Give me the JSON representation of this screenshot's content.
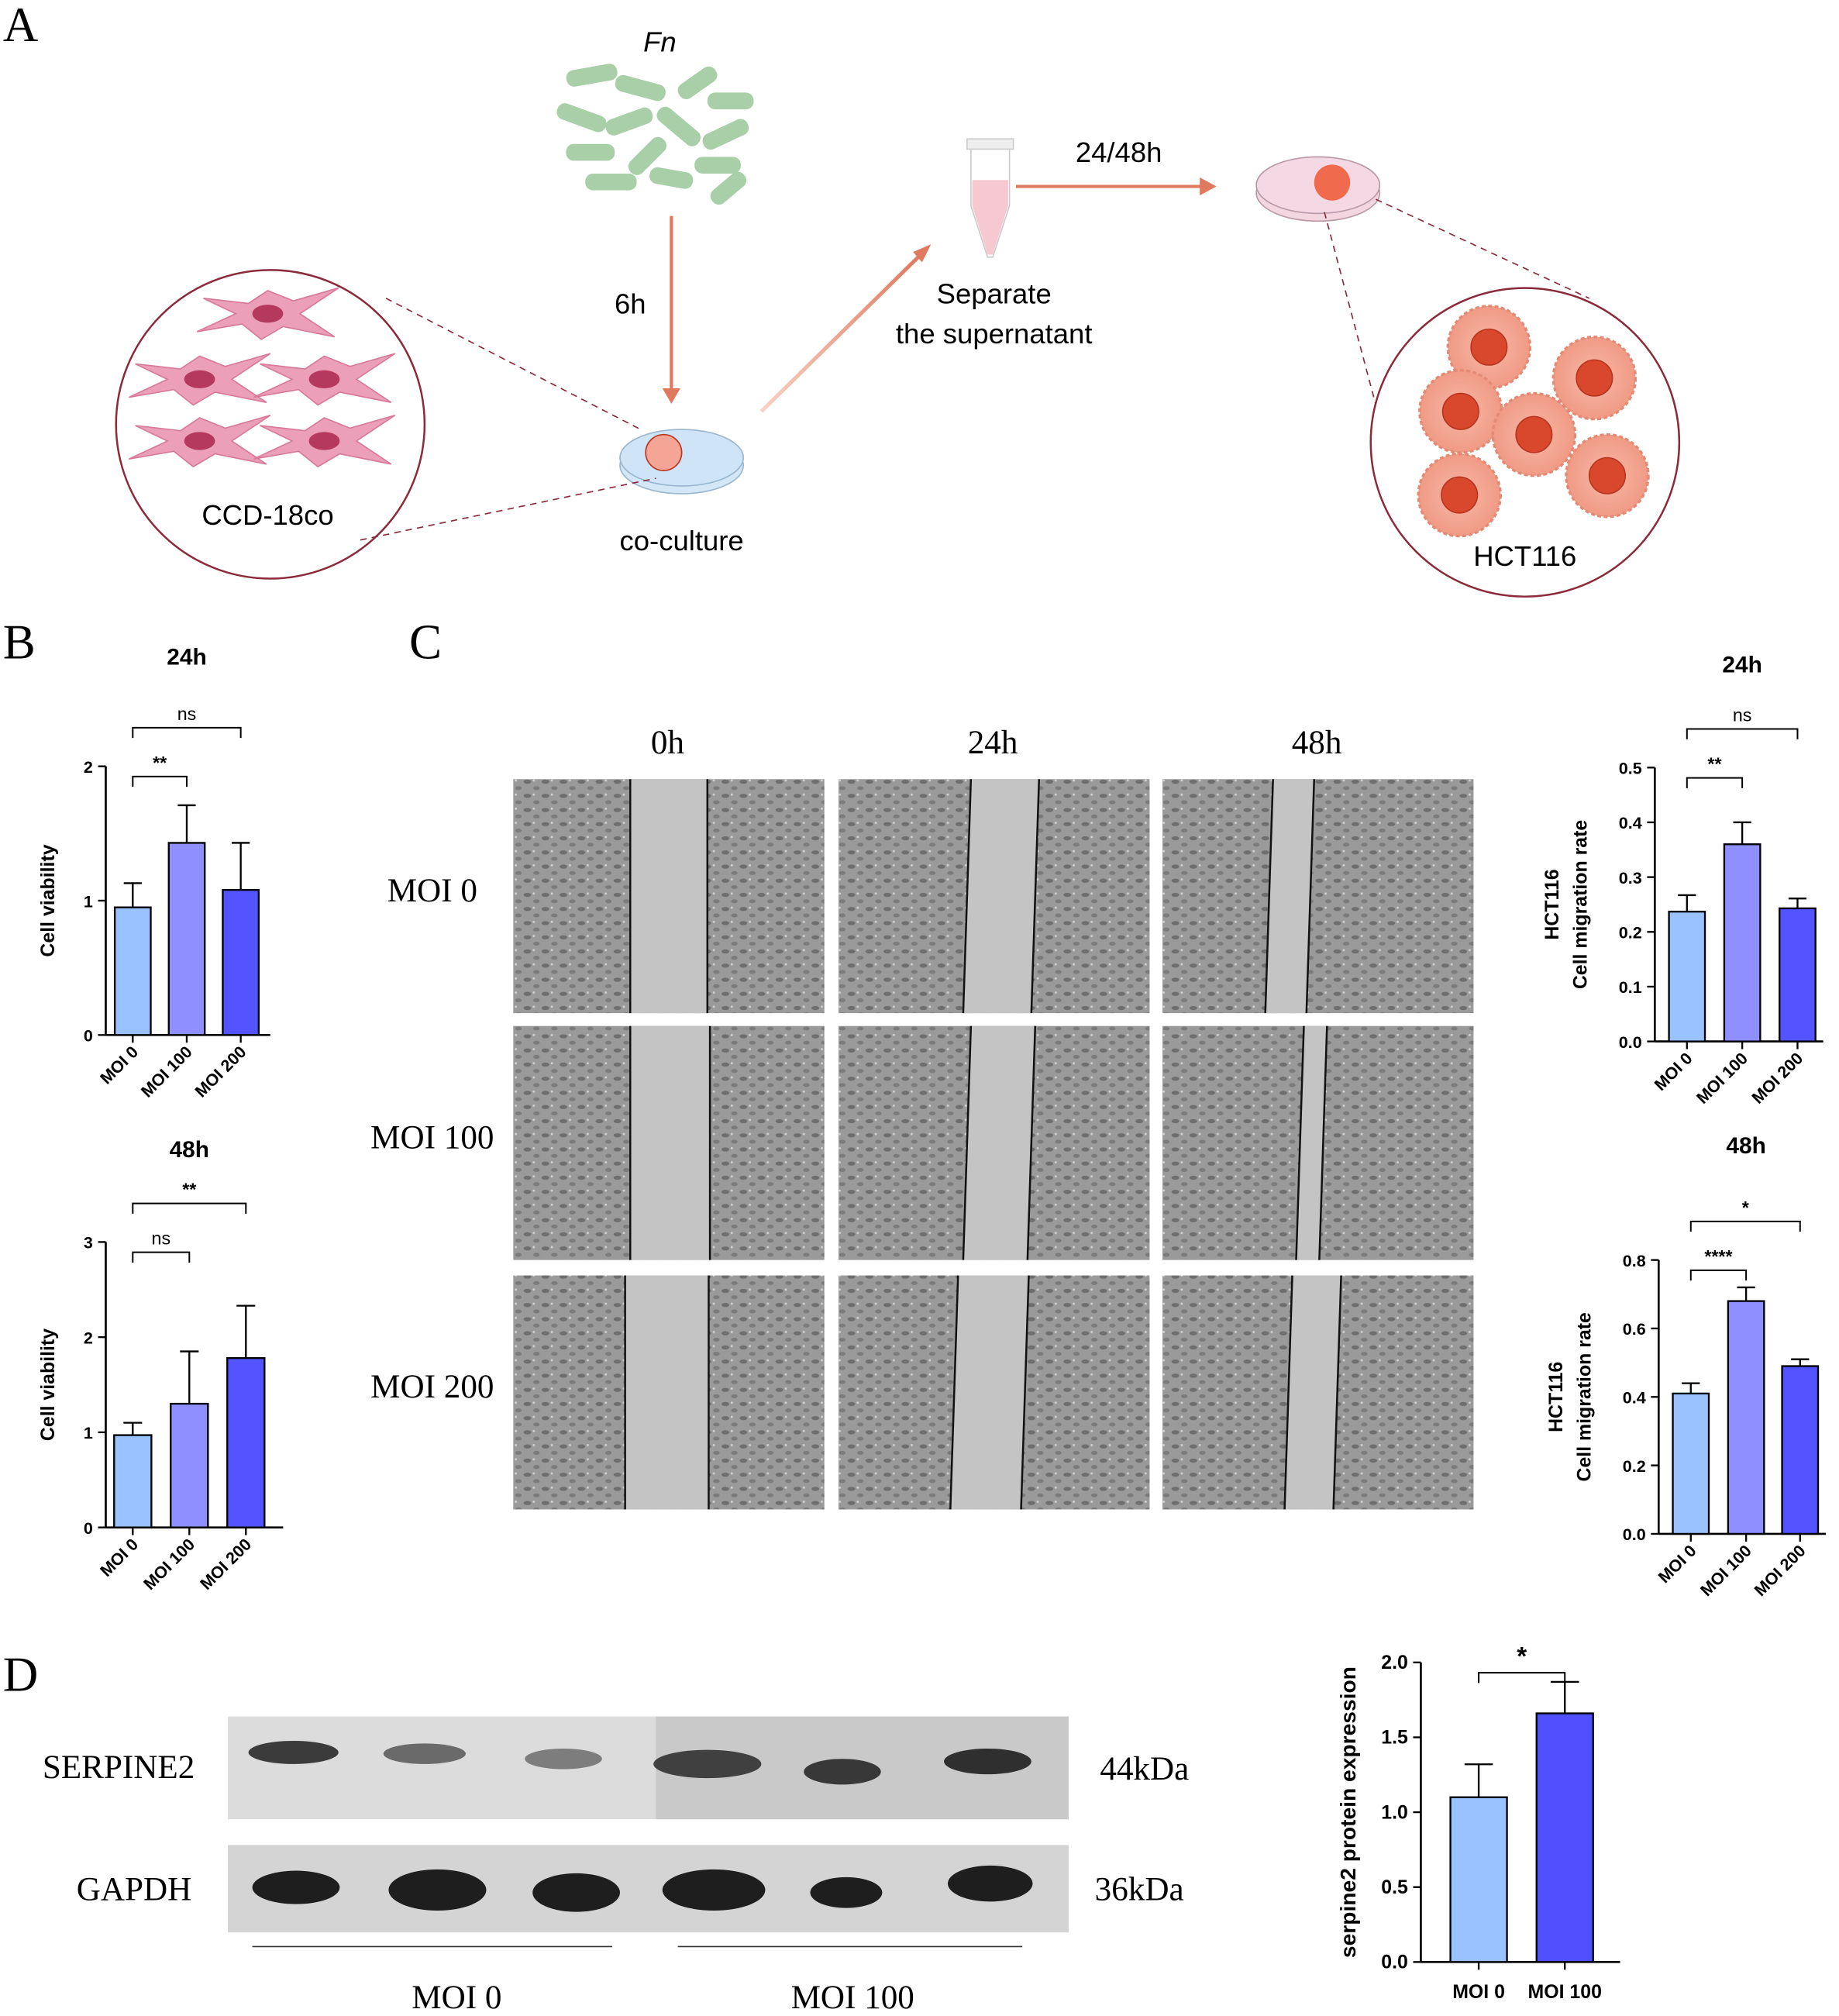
{
  "panels": [
    "A",
    "B",
    "C",
    "D"
  ],
  "diagram": {
    "bacteria": "Fn",
    "time1": "6h",
    "separate": [
      "Separate",
      "the supernatant"
    ],
    "time2": "24/48h",
    "coculture": "co-culture",
    "fibroblast": "CCD-18co",
    "cancer": "HCT116"
  },
  "scratch": {
    "columns": [
      "0h",
      "24h",
      "48h"
    ],
    "rows": [
      "MOI  0",
      "MOI 100",
      "MOI 200"
    ]
  },
  "blot": {
    "proteins": [
      "SERPINE2",
      "GAPDH"
    ],
    "sizes": [
      "44kDa",
      "36kDa"
    ],
    "groups": [
      "MOI 0",
      "MOI 100"
    ]
  },
  "chart_data": [
    {
      "type": "bar",
      "title": "24h",
      "ylabel": "Cell viability",
      "categories": [
        "MOI 0",
        "MOI 100",
        "MOI 200"
      ],
      "values": [
        0.95,
        1.43,
        1.08
      ],
      "errors": [
        0.18,
        0.28,
        0.35
      ],
      "colors": [
        "#99c2ff",
        "#8f8fff",
        "#5353ff"
      ],
      "ylim": [
        0,
        2
      ],
      "yticks": [
        0,
        1,
        2
      ],
      "significance": [
        {
          "groups": [
            "MOI 0",
            "MOI 100"
          ],
          "label": "**"
        },
        {
          "groups": [
            "MOI 0",
            "MOI 200"
          ],
          "label": "ns"
        }
      ]
    },
    {
      "type": "bar",
      "title": "48h",
      "ylabel": "Cell viability",
      "categories": [
        "MOI 0",
        "MOI 100",
        "MOI 200"
      ],
      "values": [
        0.97,
        1.3,
        1.78
      ],
      "errors": [
        0.13,
        0.55,
        0.55
      ],
      "colors": [
        "#99c2ff",
        "#8f8fff",
        "#5353ff"
      ],
      "ylim": [
        0,
        3
      ],
      "yticks": [
        0,
        1,
        2,
        3
      ],
      "significance": [
        {
          "groups": [
            "MOI 0",
            "MOI 100"
          ],
          "label": "ns"
        },
        {
          "groups": [
            "MOI 0",
            "MOI 200"
          ],
          "label": "**"
        }
      ]
    },
    {
      "type": "bar",
      "title": "24h",
      "ylabel": [
        "HCT116",
        "Cell migration rate"
      ],
      "categories": [
        "MOI 0",
        "MOI 100",
        "MOI 200"
      ],
      "values": [
        0.237,
        0.36,
        0.243
      ],
      "errors": [
        0.03,
        0.04,
        0.018
      ],
      "colors": [
        "#99c2ff",
        "#8f8fff",
        "#5353ff"
      ],
      "ylim": [
        0,
        0.5
      ],
      "yticks": [
        {
          "value": 0,
          "label": "0.0"
        },
        0.1,
        0.2,
        0.3,
        0.4,
        0.5
      ],
      "significance": [
        {
          "groups": [
            "MOI 0",
            "MOI 100"
          ],
          "label": "**"
        },
        {
          "groups": [
            "MOI 0",
            "MOI 200"
          ],
          "label": "ns"
        }
      ]
    },
    {
      "type": "bar",
      "title": "48h",
      "ylabel": [
        "HCT116",
        "Cell migration rate"
      ],
      "categories": [
        "MOI 0",
        "MOI 100",
        "MOI 200"
      ],
      "values": [
        0.41,
        0.68,
        0.49
      ],
      "errors": [
        0.03,
        0.04,
        0.02
      ],
      "colors": [
        "#99c2ff",
        "#8f8fff",
        "#5353ff"
      ],
      "ylim": [
        0,
        0.8
      ],
      "yticks": [
        {
          "value": 0,
          "label": "0.0"
        },
        0.2,
        0.4,
        0.6,
        0.8
      ],
      "significance": [
        {
          "groups": [
            "MOI 0",
            "MOI 100"
          ],
          "label": "****"
        },
        {
          "groups": [
            "MOI 0",
            "MOI 200"
          ],
          "label": "*"
        }
      ]
    },
    {
      "type": "bar",
      "ylabel": "serpine2 protein expression",
      "categories": [
        "MOI 0",
        "MOI 100"
      ],
      "values": [
        1.1,
        1.66
      ],
      "errors": [
        0.22,
        0.21
      ],
      "colors": [
        "#99c2ff",
        "#5050ff"
      ],
      "ylim": [
        0,
        2
      ],
      "yticks": [
        {
          "value": 0,
          "label": "0.0"
        },
        0.5,
        {
          "value": 1,
          "label": "1.0"
        },
        1.5,
        {
          "value": 2,
          "label": "2.0"
        }
      ],
      "significance": [
        {
          "groups": [
            "MOI 0",
            "MOI 100"
          ],
          "label": "*"
        }
      ]
    }
  ]
}
